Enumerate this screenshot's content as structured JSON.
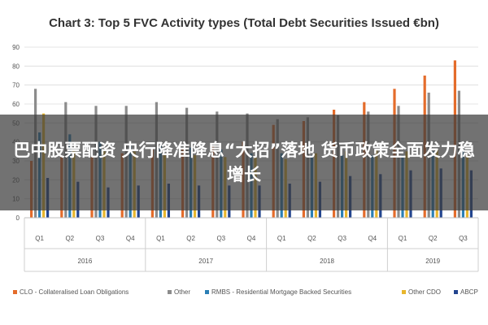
{
  "overlay": {
    "headline": "巴中股票配资 央行降准降息“大招”落地 货币政策全面发力稳增长"
  },
  "chart_data": {
    "type": "bar",
    "title": "Chart 3: Top 5 FVC Activity types (Total Debt Securities Issued €bn)",
    "xlabel": "",
    "ylabel": "",
    "ylim": [
      0,
      90
    ],
    "yticks": [
      0,
      10,
      20,
      30,
      40,
      50,
      60,
      70,
      80,
      90
    ],
    "grid": true,
    "legend_position": "bottom",
    "categories": [
      "Q1",
      "Q2",
      "Q3",
      "Q4",
      "Q1",
      "Q2",
      "Q3",
      "Q4",
      "Q1",
      "Q2",
      "Q3",
      "Q4",
      "Q1",
      "Q2",
      "Q3"
    ],
    "year_groups": [
      {
        "label": "2016",
        "count": 4
      },
      {
        "label": "2017",
        "count": 4
      },
      {
        "label": "2018",
        "count": 4
      },
      {
        "label": "2019",
        "count": 3
      }
    ],
    "series": [
      {
        "name": "CLO - Collateralised Loan Obligations",
        "color": "#E46C2B",
        "values": [
          30,
          32,
          32,
          34,
          36,
          36,
          38,
          40,
          49,
          51,
          57,
          61,
          68,
          75,
          83
        ]
      },
      {
        "name": "Other",
        "color": "#8C8C8C",
        "values": [
          68,
          61,
          59,
          59,
          61,
          58,
          56,
          55,
          52,
          53,
          54,
          56,
          59,
          66,
          67
        ]
      },
      {
        "name": "RMBS - Residential Mortgage Backed Securities",
        "color": "#2B7FB5",
        "values": [
          45,
          44,
          40,
          38,
          38,
          37,
          36,
          34,
          34,
          33,
          33,
          33,
          33,
          35,
          36
        ]
      },
      {
        "name": "Other CDO",
        "color": "#E8B62C",
        "values": [
          55,
          36,
          36,
          35,
          33,
          33,
          32,
          32,
          31,
          34,
          35,
          36,
          35,
          36,
          33
        ]
      },
      {
        "name": "ABCP",
        "color": "#23458F",
        "values": [
          21,
          19,
          16,
          17,
          18,
          17,
          17,
          17,
          18,
          19,
          22,
          23,
          25,
          26,
          25
        ]
      }
    ]
  }
}
